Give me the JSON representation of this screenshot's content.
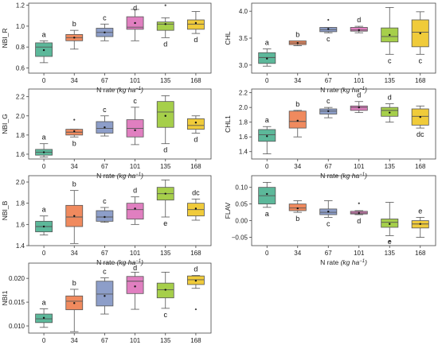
{
  "colors": [
    "#5cb89a",
    "#f08a5e",
    "#8d9ec9",
    "#e07fc0",
    "#a6cf4a",
    "#f0cb3a"
  ],
  "chart_data": [
    {
      "id": "nbi-r",
      "type": "box",
      "ylabel": "NBI_R",
      "xlabel": "N rate (kg ha⁻¹)",
      "categories": [
        "0",
        "34",
        "67",
        "101",
        "135",
        "168"
      ],
      "ylim": [
        0.55,
        1.22
      ],
      "yticks": [
        0.6,
        0.8,
        1.0,
        1.2
      ],
      "ytick_labels": [
        "0.6",
        "0.8",
        "1.0",
        "1.2"
      ],
      "boxes": [
        {
          "whislo": 0.65,
          "q1": 0.71,
          "med": 0.8,
          "q3": 0.84,
          "whishi": 0.86,
          "mean": 0.77,
          "outliers": [],
          "letter": "a",
          "letter_pos": "above"
        },
        {
          "whislo": 0.78,
          "q1": 0.86,
          "med": 0.89,
          "q3": 0.92,
          "whishi": 0.96,
          "mean": 0.89,
          "outliers": [],
          "letter": "b",
          "letter_pos": "above"
        },
        {
          "whislo": 0.86,
          "q1": 0.9,
          "med": 0.94,
          "q3": 0.98,
          "whishi": 1.02,
          "mean": 0.94,
          "outliers": [],
          "letter": "c",
          "letter_pos": "above"
        },
        {
          "whislo": 0.86,
          "q1": 0.97,
          "med": 0.99,
          "q3": 1.09,
          "whishi": 1.16,
          "mean": 1.03,
          "outliers": [],
          "letter": "d",
          "letter_pos": "above"
        },
        {
          "whislo": 0.89,
          "q1": 0.96,
          "med": 1.02,
          "q3": 1.04,
          "whishi": 1.08,
          "mean": 1.02,
          "outliers": [
            1.2
          ],
          "letter": "d",
          "letter_pos": "below"
        },
        {
          "whislo": 0.93,
          "q1": 0.97,
          "med": 1.02,
          "q3": 1.06,
          "whishi": 1.14,
          "mean": 1.03,
          "outliers": [],
          "letter": "d",
          "letter_pos": "below"
        }
      ]
    },
    {
      "id": "chl",
      "type": "box",
      "ylabel": "CHL",
      "xlabel": "N rate (kg ha⁻¹)",
      "categories": [
        "0",
        "34",
        "67",
        "101",
        "135",
        "168"
      ],
      "ylim": [
        2.85,
        4.15
      ],
      "yticks": [
        3.0,
        3.5,
        4.0
      ],
      "ytick_labels": [
        "3.0",
        "3.5",
        "4.0"
      ],
      "boxes": [
        {
          "whislo": 2.98,
          "q1": 3.03,
          "med": 3.14,
          "q3": 3.23,
          "whishi": 3.3,
          "mean": 3.12,
          "outliers": [],
          "letter": "a",
          "letter_pos": "above"
        },
        {
          "whislo": 3.36,
          "q1": 3.38,
          "med": 3.41,
          "q3": 3.45,
          "whishi": 3.45,
          "mean": 3.41,
          "outliers": [],
          "letter": "b",
          "letter_pos": "above"
        },
        {
          "whislo": 3.6,
          "q1": 3.62,
          "med": 3.66,
          "q3": 3.7,
          "whishi": 3.7,
          "mean": 3.67,
          "outliers": [
            3.84
          ],
          "letter": "c",
          "letter_pos": "below"
        },
        {
          "whislo": 3.6,
          "q1": 3.63,
          "med": 3.65,
          "q3": 3.7,
          "whishi": 3.72,
          "mean": 3.65,
          "outliers": [],
          "letter": "d",
          "letter_pos": "above"
        },
        {
          "whislo": 3.2,
          "q1": 3.43,
          "med": 3.53,
          "q3": 3.69,
          "whishi": 4.07,
          "mean": 3.56,
          "outliers": [],
          "letter": "c",
          "letter_pos": "below"
        },
        {
          "whislo": 3.2,
          "q1": 3.34,
          "med": 3.61,
          "q3": 3.84,
          "whishi": 3.99,
          "mean": 3.59,
          "outliers": [],
          "letter": "c",
          "letter_pos": "below"
        }
      ]
    },
    {
      "id": "nbi-g",
      "type": "box",
      "ylabel": "NBI_G",
      "xlabel": "N rate (kg ha⁻¹)",
      "categories": [
        "0",
        "34",
        "67",
        "101",
        "135",
        "168"
      ],
      "ylim": [
        1.55,
        2.28
      ],
      "yticks": [
        1.6,
        1.8,
        2.0,
        2.2
      ],
      "ytick_labels": [
        "1.6",
        "1.8",
        "2.0",
        "2.2"
      ],
      "boxes": [
        {
          "whislo": 1.57,
          "q1": 1.59,
          "med": 1.62,
          "q3": 1.65,
          "whishi": 1.71,
          "mean": 1.62,
          "outliers": [],
          "letter": "a",
          "letter_pos": "above"
        },
        {
          "whislo": 1.78,
          "q1": 1.8,
          "med": 1.83,
          "q3": 1.86,
          "whishi": 1.86,
          "mean": 1.84,
          "outliers": [
            1.96
          ],
          "letter": "b",
          "letter_pos": "below"
        },
        {
          "whislo": 1.79,
          "q1": 1.82,
          "med": 1.87,
          "q3": 1.94,
          "whishi": 2.0,
          "mean": 1.88,
          "outliers": [],
          "letter": "c",
          "letter_pos": "above"
        },
        {
          "whislo": 1.7,
          "q1": 1.78,
          "med": 1.87,
          "q3": 1.96,
          "whishi": 2.09,
          "mean": 1.85,
          "outliers": [],
          "letter": "c",
          "letter_pos": "above"
        },
        {
          "whislo": 1.71,
          "q1": 1.88,
          "med": 2.04,
          "q3": 2.15,
          "whishi": 2.21,
          "mean": 2.0,
          "outliers": [],
          "letter": "d",
          "letter_pos": "below"
        },
        {
          "whislo": 1.82,
          "q1": 1.86,
          "med": 1.9,
          "q3": 1.97,
          "whishi": 2.0,
          "mean": 1.93,
          "outliers": [],
          "letter": "d",
          "letter_pos": "below"
        }
      ]
    },
    {
      "id": "chl1",
      "type": "box",
      "ylabel": "CHL1",
      "xlabel": "N rate (kg ha⁻¹)",
      "categories": [
        "0",
        "34",
        "67",
        "101",
        "135",
        "168"
      ],
      "ylim": [
        1.3,
        2.25
      ],
      "yticks": [
        1.4,
        1.6,
        1.8,
        2.0,
        2.2
      ],
      "ytick_labels": [
        "1.4",
        "1.6",
        "1.8",
        "2.0",
        "2.2"
      ],
      "boxes": [
        {
          "whislo": 1.37,
          "q1": 1.54,
          "med": 1.63,
          "q3": 1.7,
          "whishi": 1.74,
          "mean": 1.61,
          "outliers": [],
          "letter": "a",
          "letter_pos": "above"
        },
        {
          "whislo": 1.6,
          "q1": 1.72,
          "med": 1.81,
          "q3": 1.95,
          "whishi": 1.96,
          "mean": 1.82,
          "outliers": [],
          "letter": "b",
          "letter_pos": "above"
        },
        {
          "whislo": 1.86,
          "q1": 1.91,
          "med": 1.95,
          "q3": 1.98,
          "whishi": 2.0,
          "mean": 1.95,
          "outliers": [],
          "letter": "c",
          "letter_pos": "above"
        },
        {
          "whislo": 1.93,
          "q1": 1.96,
          "med": 2.0,
          "q3": 2.02,
          "whishi": 2.08,
          "mean": 2.0,
          "outliers": [],
          "letter": "d",
          "letter_pos": "above"
        },
        {
          "whislo": 1.8,
          "q1": 1.88,
          "med": 1.96,
          "q3": 2.0,
          "whishi": 2.05,
          "mean": 1.93,
          "outliers": [],
          "letter": "d",
          "letter_pos": "above"
        },
        {
          "whislo": 1.72,
          "q1": 1.76,
          "med": 1.88,
          "q3": 1.98,
          "whishi": 2.02,
          "mean": 1.87,
          "outliers": [],
          "letter": "dc",
          "letter_pos": "below"
        }
      ]
    },
    {
      "id": "nbi-b",
      "type": "box",
      "ylabel": "NBI_B",
      "xlabel": "N rate (kg ha⁻¹)",
      "categories": [
        "0",
        "34",
        "67",
        "101",
        "135",
        "168"
      ],
      "ylim": [
        1.4,
        2.06
      ],
      "yticks": [
        1.4,
        1.6,
        1.8,
        2.0
      ],
      "ytick_labels": [
        "1.4",
        "1.6",
        "1.8",
        "2.0"
      ],
      "boxes": [
        {
          "whislo": 1.5,
          "q1": 1.53,
          "med": 1.58,
          "q3": 1.63,
          "whishi": 1.68,
          "mean": 1.58,
          "outliers": [],
          "letter": "a",
          "letter_pos": "above"
        },
        {
          "whislo": 1.42,
          "q1": 1.58,
          "med": 1.67,
          "q3": 1.78,
          "whishi": 1.92,
          "mean": 1.68,
          "outliers": [],
          "letter": "b",
          "letter_pos": "above"
        },
        {
          "whislo": 1.62,
          "q1": 1.63,
          "med": 1.67,
          "q3": 1.73,
          "whishi": 1.76,
          "mean": 1.67,
          "outliers": [],
          "letter": "c",
          "letter_pos": "above"
        },
        {
          "whislo": 1.6,
          "q1": 1.65,
          "med": 1.74,
          "q3": 1.8,
          "whishi": 1.86,
          "mean": 1.75,
          "outliers": [],
          "letter": "d",
          "letter_pos": "above"
        },
        {
          "whislo": 1.67,
          "q1": 1.83,
          "med": 1.89,
          "q3": 1.95,
          "whishi": 2.02,
          "mean": 1.89,
          "outliers": [],
          "letter": "e",
          "letter_pos": "below"
        },
        {
          "whislo": 1.64,
          "q1": 1.68,
          "med": 1.74,
          "q3": 1.8,
          "whishi": 1.84,
          "mean": 1.75,
          "outliers": [],
          "letter": "dc",
          "letter_pos": "above"
        }
      ]
    },
    {
      "id": "flav",
      "type": "box",
      "ylabel": "FLAV",
      "xlabel": "N rate (kg ha⁻¹)",
      "categories": [
        "0",
        "34",
        "67",
        "101",
        "135",
        "168"
      ],
      "ylim": [
        -0.075,
        0.135
      ],
      "yticks": [
        -0.05,
        0.0,
        0.05,
        0.1
      ],
      "ytick_labels": [
        "−0.05",
        "0.00",
        "0.05",
        "0.10"
      ],
      "boxes": [
        {
          "whislo": 0.04,
          "q1": 0.05,
          "med": 0.075,
          "q3": 0.1,
          "whishi": 0.115,
          "mean": 0.08,
          "outliers": [],
          "letter": "a",
          "letter_pos": "below"
        },
        {
          "whislo": 0.025,
          "q1": 0.03,
          "med": 0.038,
          "q3": 0.05,
          "whishi": 0.06,
          "mean": 0.037,
          "outliers": [],
          "letter": "b",
          "letter_pos": "below"
        },
        {
          "whislo": 0.01,
          "q1": 0.018,
          "med": 0.025,
          "q3": 0.035,
          "whishi": 0.06,
          "mean": 0.027,
          "outliers": [],
          "letter": "c",
          "letter_pos": "below"
        },
        {
          "whislo": 0.018,
          "q1": 0.02,
          "med": 0.023,
          "q3": 0.028,
          "whishi": 0.03,
          "mean": 0.023,
          "outliers": [
            0.052
          ],
          "letter": "d",
          "letter_pos": "below"
        },
        {
          "whislo": -0.045,
          "q1": -0.02,
          "med": -0.005,
          "q3": 0.005,
          "whishi": 0.055,
          "mean": -0.01,
          "outliers": [
            -0.062
          ],
          "letter": "e",
          "letter_pos": "below"
        },
        {
          "whislo": -0.05,
          "q1": -0.022,
          "med": -0.01,
          "q3": 0.0,
          "whishi": 0.01,
          "mean": -0.01,
          "outliers": [],
          "letter": "e",
          "letter_pos": "above"
        }
      ]
    },
    {
      "id": "nbi1",
      "type": "box",
      "ylabel": "NBI1",
      "xlabel": "N rate (kg ha⁻¹)",
      "categories": [
        "0",
        "34",
        "67",
        "101",
        "135",
        "168"
      ],
      "ylim": [
        0.0085,
        0.0232
      ],
      "yticks": [
        0.01,
        0.015,
        0.02
      ],
      "ytick_labels": [
        "0.010",
        "0.015",
        "0.020"
      ],
      "boxes": [
        {
          "whislo": 0.0097,
          "q1": 0.0107,
          "med": 0.0115,
          "q3": 0.0125,
          "whishi": 0.0136,
          "mean": 0.0117,
          "outliers": [],
          "letter": "a",
          "letter_pos": "above"
        },
        {
          "whislo": 0.0088,
          "q1": 0.0134,
          "med": 0.0152,
          "q3": 0.0163,
          "whishi": 0.0177,
          "mean": 0.0148,
          "outliers": [],
          "letter": "b",
          "letter_pos": "above"
        },
        {
          "whislo": 0.0125,
          "q1": 0.0142,
          "med": 0.0167,
          "q3": 0.0194,
          "whishi": 0.0201,
          "mean": 0.0163,
          "outliers": [],
          "letter": "c",
          "letter_pos": "above"
        },
        {
          "whislo": 0.0135,
          "q1": 0.0168,
          "med": 0.0194,
          "q3": 0.0204,
          "whishi": 0.0213,
          "mean": 0.0183,
          "outliers": [],
          "letter": "d",
          "letter_pos": "above"
        },
        {
          "whislo": 0.0137,
          "q1": 0.0159,
          "med": 0.0176,
          "q3": 0.019,
          "whishi": 0.0213,
          "mean": 0.0176,
          "outliers": [],
          "letter": "c",
          "letter_pos": "below"
        },
        {
          "whislo": 0.0179,
          "q1": 0.0187,
          "med": 0.0197,
          "q3": 0.0205,
          "whishi": 0.0206,
          "mean": 0.0195,
          "outliers": [
            0.0135
          ],
          "letter": "d",
          "letter_pos": "above"
        }
      ]
    }
  ]
}
